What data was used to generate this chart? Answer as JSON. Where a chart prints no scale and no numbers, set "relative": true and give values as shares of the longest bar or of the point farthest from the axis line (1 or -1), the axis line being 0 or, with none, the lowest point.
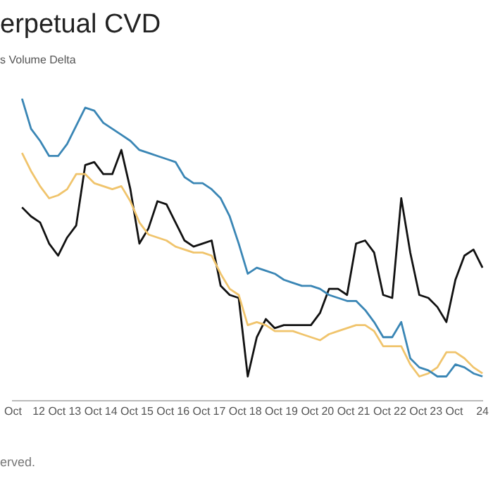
{
  "chart_data": {
    "type": "line",
    "title": "erpetual CVD",
    "subtitle": "s Volume Delta",
    "annotations": [
      "erved."
    ],
    "relative": true,
    "legend": false,
    "marker": "none",
    "line_style": "solid",
    "categories": [
      "Oct",
      null,
      null,
      null,
      "12 Oct",
      null,
      null,
      null,
      "13 Oct",
      null,
      null,
      null,
      "14 Oct",
      null,
      null,
      null,
      "15 Oct",
      null,
      null,
      null,
      "16 Oct",
      null,
      null,
      null,
      "17 Oct",
      null,
      null,
      null,
      "18 Oct",
      null,
      null,
      null,
      "19 Oct",
      null,
      null,
      null,
      "20 Oct",
      null,
      null,
      null,
      "21 Oct",
      null,
      null,
      null,
      "22 Oct",
      null,
      null,
      null,
      "23 Oct",
      null,
      null,
      null,
      "24"
    ],
    "series": [
      {
        "color": "#3a86b5",
        "values": [
          null,
          1,
          0.9,
          0.86,
          0.81,
          0.81,
          0.85,
          0.91,
          0.97,
          0.96,
          0.92,
          0.9,
          0.88,
          0.86,
          0.83,
          0.82,
          0.81,
          0.8,
          0.79,
          0.74,
          0.72,
          0.72,
          0.7,
          0.67,
          0.61,
          0.52,
          0.42,
          0.44,
          0.43,
          0.42,
          0.4,
          0.39,
          0.38,
          0.38,
          0.37,
          0.35,
          0.34,
          0.33,
          0.33,
          0.3,
          0.26,
          0.21,
          0.21,
          0.26,
          0.14,
          0.11,
          0.1,
          0.08,
          0.08,
          0.12,
          0.11,
          0.09,
          0.08
        ]
      },
      {
        "color": "#f0c46c",
        "values": [
          null,
          0.82,
          0.76,
          0.71,
          0.67,
          0.68,
          0.7,
          0.75,
          0.75,
          0.72,
          0.71,
          0.7,
          0.71,
          0.66,
          0.59,
          0.55,
          0.54,
          0.53,
          0.51,
          0.5,
          0.49,
          0.49,
          0.48,
          0.42,
          0.37,
          0.35,
          0.25,
          0.26,
          0.25,
          0.23,
          0.23,
          0.23,
          0.22,
          0.21,
          0.2,
          0.22,
          0.23,
          0.24,
          0.25,
          0.25,
          0.23,
          0.18,
          0.18,
          0.18,
          0.12,
          0.08,
          0.09,
          0.11,
          0.16,
          0.16,
          0.14,
          0.11,
          0.09
        ]
      },
      {
        "color": "#111111",
        "values": [
          null,
          0.64,
          0.61,
          0.59,
          0.52,
          0.48,
          0.54,
          0.58,
          0.78,
          0.79,
          0.75,
          0.75,
          0.83,
          0.7,
          0.52,
          0.57,
          0.66,
          0.65,
          0.59,
          0.53,
          0.51,
          0.52,
          0.53,
          0.38,
          0.35,
          0.34,
          0.08,
          0.21,
          0.27,
          0.24,
          0.25,
          0.25,
          0.25,
          0.25,
          0.29,
          0.37,
          0.37,
          0.35,
          0.52,
          0.53,
          0.49,
          0.35,
          0.34,
          0.67,
          0.49,
          0.35,
          0.34,
          0.31,
          0.26,
          0.4,
          0.48,
          0.5,
          0.44
        ]
      }
    ]
  }
}
